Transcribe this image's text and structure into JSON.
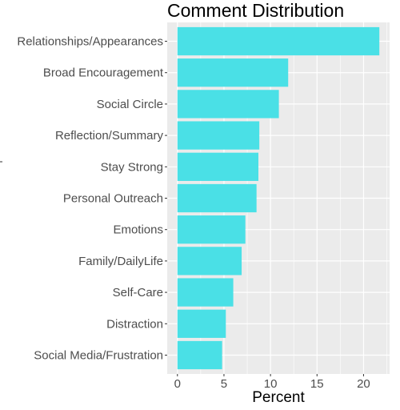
{
  "chart_data": {
    "type": "bar",
    "orientation": "horizontal",
    "title": "Comment Distribution",
    "xlabel": "Percent",
    "ylabel": "",
    "categories": [
      "Relationships/Appearances",
      "Broad Encouragement",
      "Social Circle",
      "Reflection/Summary",
      "Stay Strong",
      "Personal Outreach",
      "Emotions",
      "Family/DailyLife",
      "Self-Care",
      "Distraction",
      "Social Media/Frustration"
    ],
    "values": [
      21.7,
      11.9,
      10.9,
      8.8,
      8.7,
      8.5,
      7.3,
      6.9,
      6.0,
      5.2,
      4.8
    ],
    "xlim": [
      -1.1,
      22.8
    ],
    "xticks": [
      0,
      5,
      10,
      15,
      20
    ],
    "grid": true,
    "legend": "none",
    "colors": {
      "bar": "#4ae0e6",
      "panel": "#ebebeb",
      "grid": "#ffffff",
      "tick": "#333333",
      "text": "#4d4d4d"
    }
  }
}
